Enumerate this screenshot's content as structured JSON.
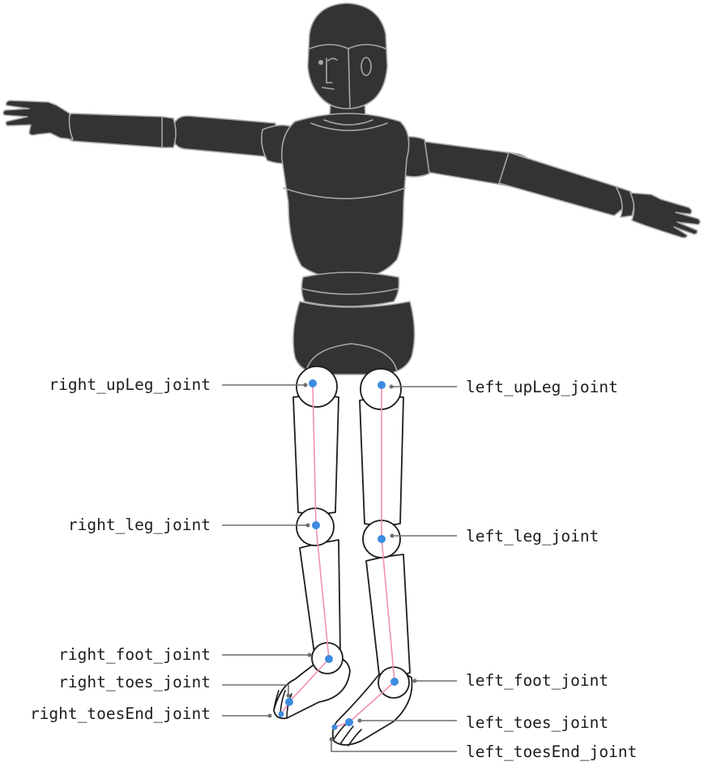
{
  "labels": {
    "right_upLeg": "right_upLeg_joint",
    "left_upLeg": "left_upLeg_joint",
    "right_leg": "right_leg_joint",
    "left_leg": "left_leg_joint",
    "right_foot": "right_foot_joint",
    "left_foot": "left_foot_joint",
    "right_toes": "right_toes_joint",
    "left_toes": "left_toes_joint",
    "right_toesEnd": "right_toesEnd_joint",
    "left_toesEnd": "left_toesEnd_joint"
  },
  "colors": {
    "body": "#333336",
    "joint_dot": "#3d8be0",
    "bone_line": "#f08fb6",
    "leader_line": "#6e6e73"
  }
}
